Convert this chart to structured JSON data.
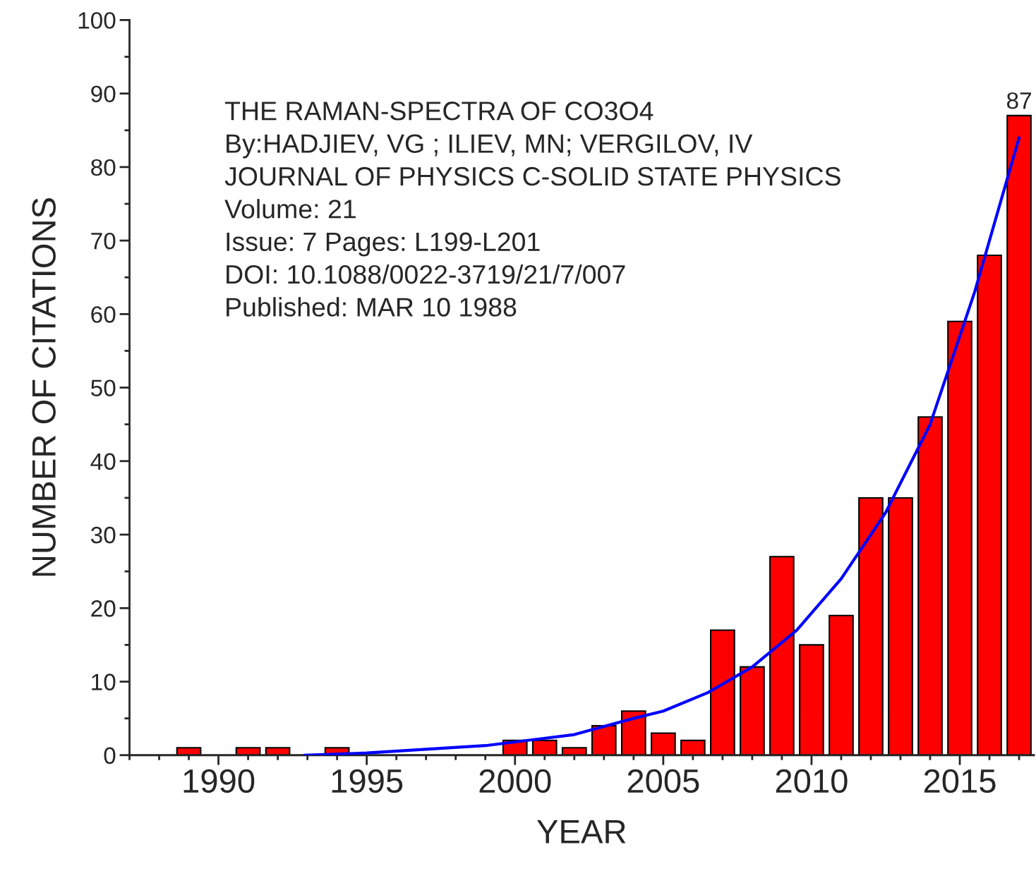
{
  "chart_data": {
    "type": "bar",
    "xlabel": "YEAR",
    "ylabel": "NUMBER OF CITATIONS",
    "annotations": [
      "THE RAMAN-SPECTRA OF CO3O4",
      "By:HADJIEV, VG ; ILIEV, MN; VERGILOV, IV",
      "JOURNAL OF PHYSICS C-SOLID STATE PHYSICS",
      "Volume: 21",
      "Issue: 7 Pages: L199-L201",
      "DOI: 10.1088/0022-3719/21/7/007",
      "Published: MAR 10 1988"
    ],
    "x": [
      1989,
      1990,
      1991,
      1992,
      1993,
      1994,
      1995,
      1996,
      1997,
      1998,
      1999,
      2000,
      2001,
      2002,
      2003,
      2004,
      2005,
      2006,
      2007,
      2008,
      2009,
      2010,
      2011,
      2012,
      2013,
      2014,
      2015,
      2016,
      2017
    ],
    "series": [
      {
        "color": "#ff0000",
        "values": [
          1,
          0,
          1,
          1,
          0,
          1,
          0,
          0,
          0,
          0,
          0,
          2,
          2,
          1,
          4,
          6,
          3,
          2,
          17,
          12,
          27,
          15,
          19,
          35,
          35,
          46,
          59,
          68,
          87
        ],
        "value_labels": [
          null,
          null,
          null,
          null,
          null,
          null,
          null,
          null,
          null,
          null,
          null,
          null,
          null,
          null,
          null,
          null,
          null,
          null,
          null,
          null,
          null,
          null,
          null,
          null,
          null,
          null,
          null,
          null,
          "87"
        ]
      },
      {
        "type": "line",
        "color": "#0000ff",
        "x": [
          1992.9,
          1995,
          1997,
          1999,
          2000,
          2002,
          2003,
          2004,
          2005,
          2006.5,
          2008,
          2009.5,
          2011,
          2012.5,
          2014,
          2015.5,
          2017
        ],
        "values": [
          0,
          0.3,
          0.8,
          1.3,
          1.8,
          2.8,
          3.9,
          5,
          6,
          8.5,
          12,
          17,
          24,
          33,
          45,
          63,
          84
        ]
      }
    ],
    "xlim": [
      1987,
      2017.5
    ],
    "xticks": [
      1990,
      1995,
      2000,
      2005,
      2010,
      2015
    ],
    "ylim": [
      0,
      100
    ],
    "yticks": [
      0,
      10,
      20,
      30,
      40,
      50,
      60,
      70,
      80,
      90,
      100
    ],
    "grid": false,
    "legend": false
  }
}
